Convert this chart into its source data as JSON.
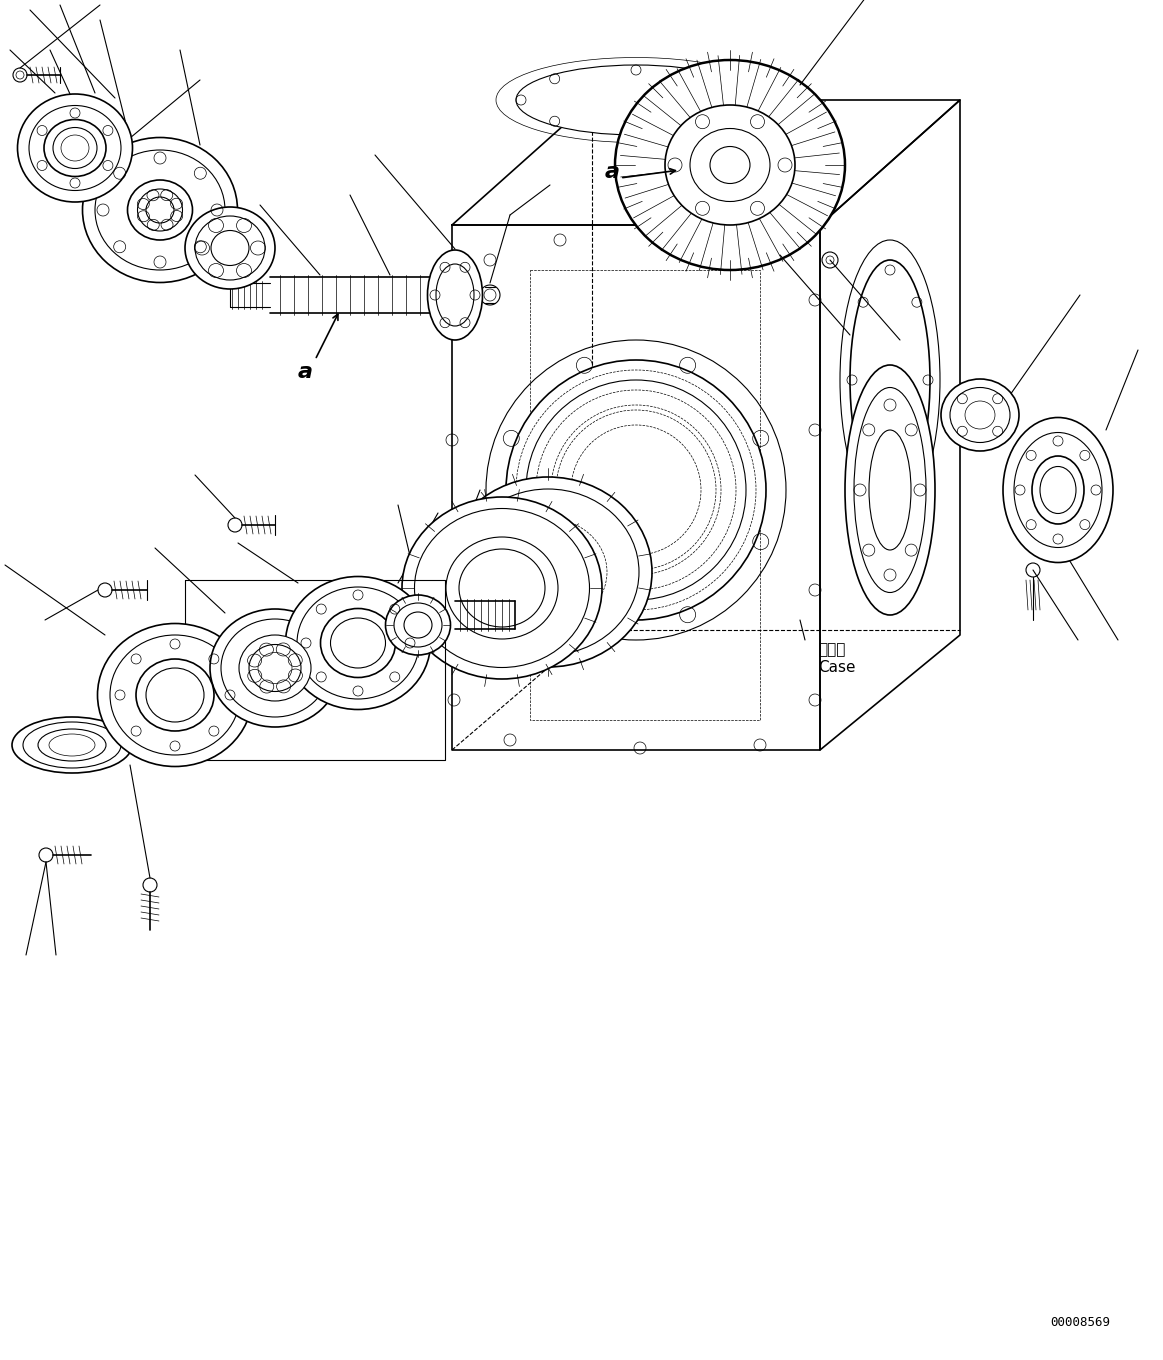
{
  "background_color": "#ffffff",
  "line_color": "#000000",
  "diagram_id": "00008569",
  "labels": {
    "case_jp": "ケース",
    "case_en": "Case",
    "arrow_a_lower": "a",
    "arrow_a_upper": "a"
  },
  "figsize": [
    11.63,
    13.6
  ],
  "dpi": 100
}
